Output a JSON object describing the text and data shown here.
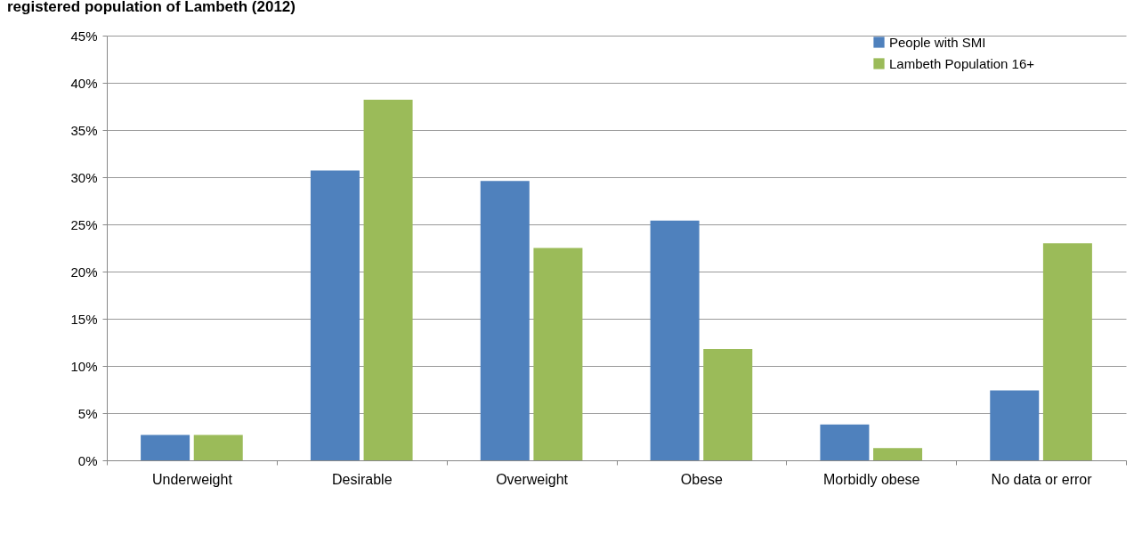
{
  "chart_data": {
    "type": "bar",
    "title": "registered population of Lambeth (2012)",
    "categories": [
      "Underweight",
      "Desirable",
      "Overweight",
      "Obese",
      "Morbidly obese",
      "No data or error"
    ],
    "series": [
      {
        "name": "People with SMI",
        "color": "#4f81bd",
        "values": [
          2.7,
          30.7,
          29.6,
          25.4,
          3.8,
          7.4
        ]
      },
      {
        "name": "Lambeth Population 16+",
        "color": "#9bbb59",
        "values": [
          2.7,
          38.2,
          22.5,
          11.8,
          1.3,
          23.0
        ]
      }
    ],
    "ylim": [
      0,
      45
    ],
    "yticks": [
      {
        "value": 0,
        "label": "0%"
      },
      {
        "value": 5,
        "label": "5%"
      },
      {
        "value": 10,
        "label": "10%"
      },
      {
        "value": 15,
        "label": "15%"
      },
      {
        "value": 20,
        "label": "20%"
      },
      {
        "value": 25,
        "label": "25%"
      },
      {
        "value": 30,
        "label": "30%"
      },
      {
        "value": 35,
        "label": "35%"
      },
      {
        "value": 40,
        "label": "40%"
      },
      {
        "value": 45,
        "label": "45%"
      }
    ],
    "grid": "y",
    "legend": "top right"
  }
}
